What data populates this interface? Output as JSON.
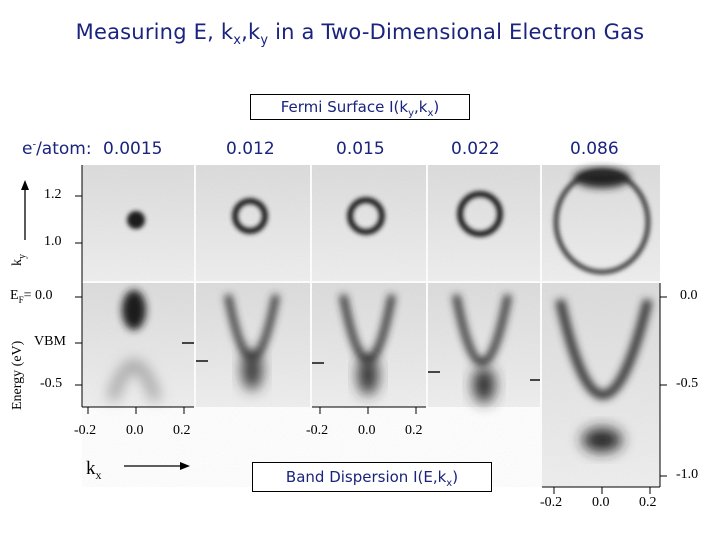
{
  "title": "Measuring E, kx,ky in a Two-Dimensional Electron Gas",
  "title_parts": {
    "prefix": "Measuring E, k",
    "sub_x": "x",
    "mid": ",k",
    "sub_y": "y",
    "suffix": " in a Two-Dimensional Electron Gas"
  },
  "fermi_label": {
    "prefix": "Fermi Surface I(k",
    "sub_y": "y",
    "comma": ",k",
    "sub_x": "x",
    "suffix": ")"
  },
  "band_label": {
    "prefix": "Band Dispersion I(E,k",
    "sub_x": "x",
    "suffix": ")"
  },
  "density_label": {
    "prefix": "e",
    "sup": "-",
    "suffix": "/atom:"
  },
  "densities": [
    "0.0015",
    "0.012",
    "0.015",
    "0.022",
    "0.086"
  ],
  "ky_axis": {
    "label": "k",
    "sub": "y",
    "ticks": [
      "1.2",
      "1.0"
    ]
  },
  "energy_axis": {
    "label": "Energy (eV)",
    "ef_label": "E",
    "ef_sub": "F",
    "ef_value": "= 0.0",
    "vbm": "VBM",
    "tick_low": "-0.5"
  },
  "kx_axis": {
    "label": "k",
    "sub": "x",
    "ticks": [
      "-0.2",
      "0.0",
      "0.2"
    ]
  },
  "right_axis": {
    "ticks": [
      "0.0",
      "-0.5",
      "-1.0"
    ]
  },
  "colors": {
    "accent_text": "#1a237e",
    "image_dark": "#1e1e1e",
    "image_bg": "#e6e6e6"
  }
}
